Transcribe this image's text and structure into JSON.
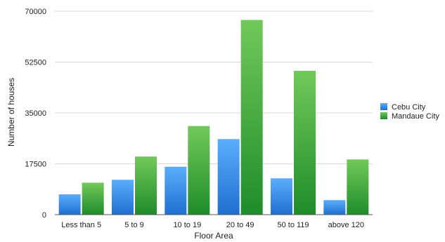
{
  "chart_data": {
    "type": "bar",
    "title": "",
    "xlabel": "Floor Area",
    "ylabel": "Number of houses",
    "categories": [
      "Less than 5",
      "5 to 9",
      "10 to 19",
      "20 to 49",
      "50 to 119",
      "above 120"
    ],
    "series": [
      {
        "name": "Cebu City",
        "color": "#3a8ee6",
        "values": [
          7000,
          12000,
          16500,
          26000,
          12500,
          5000
        ]
      },
      {
        "name": "Mandaue City",
        "color": "#3aa63a",
        "values": [
          11000,
          20000,
          30500,
          67000,
          49500,
          19000
        ]
      }
    ],
    "ylim": [
      0,
      70000
    ],
    "yticks": [
      "0",
      "17500",
      "35000",
      "52500",
      "70000"
    ],
    "ytick_values": [
      0,
      17500,
      35000,
      52500,
      70000
    ],
    "grid": true,
    "legend_position": "right"
  }
}
